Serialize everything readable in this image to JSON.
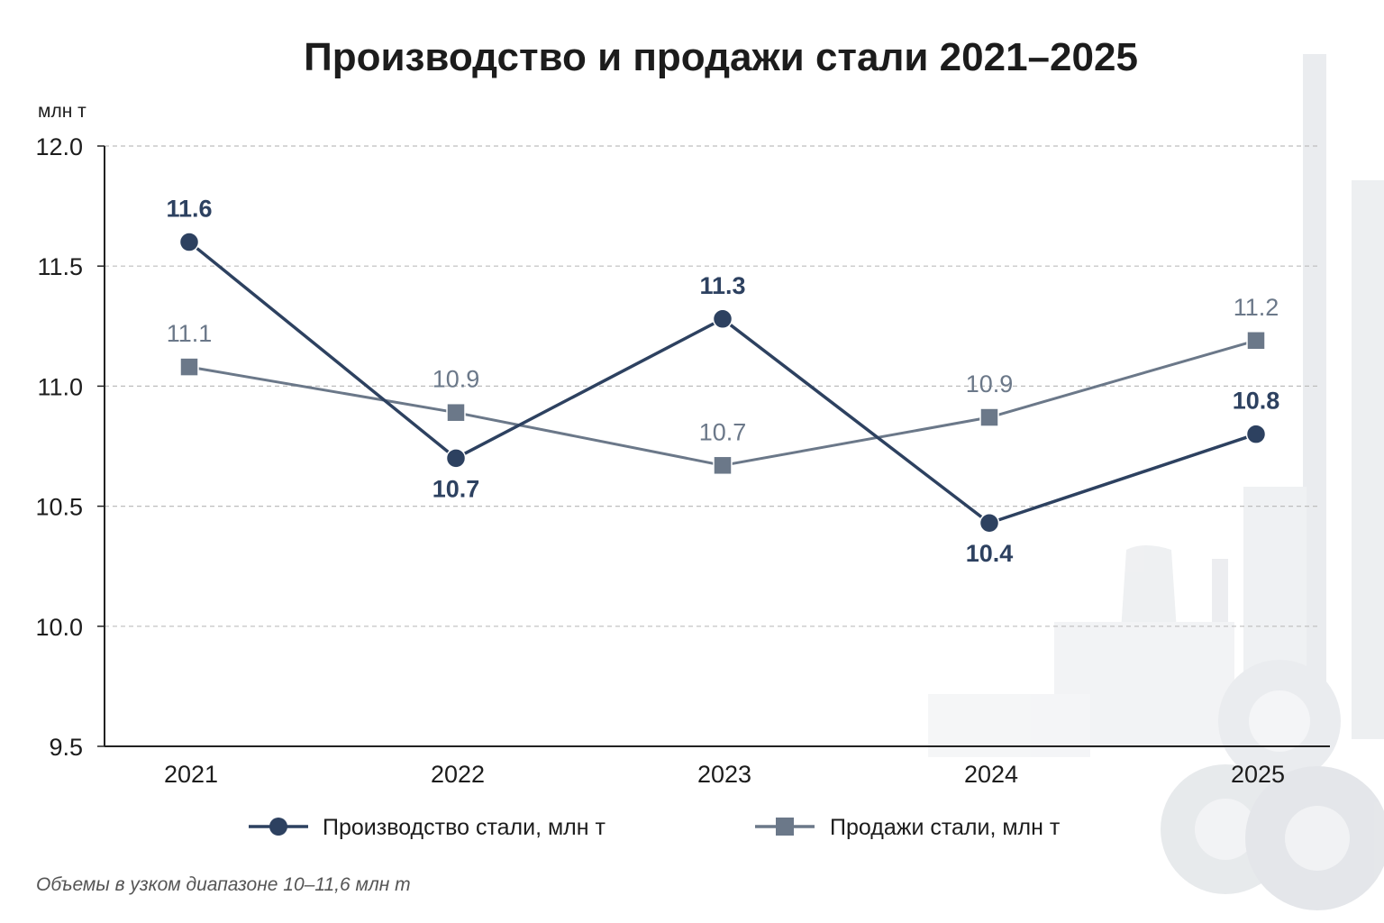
{
  "colors": {
    "production": "#2d4160",
    "sales": "#6b7889",
    "grid": "#bdbdbd",
    "axis": "#222222"
  },
  "chart_data": {
    "type": "line",
    "title": "Производство и продажи стали 2021–2025",
    "ylabel": "млн т",
    "xlabel": "",
    "categories": [
      "2021",
      "2022",
      "2023",
      "2024",
      "2025"
    ],
    "ylim": [
      9.5,
      12.0
    ],
    "yticks": [
      "9.5",
      "10.0",
      "10.5",
      "11.0",
      "11.5",
      "12.0"
    ],
    "grid": true,
    "legend_position": "bottom",
    "series": [
      {
        "name": "Производство стали, млн т",
        "marker": "circle",
        "values": [
          11.6,
          10.7,
          11.28,
          10.43,
          10.8
        ],
        "labels": [
          "11.6",
          "10.7",
          "11.3",
          "10.4",
          "10.8"
        ],
        "label_pos": [
          "above",
          "below",
          "above",
          "below",
          "above"
        ]
      },
      {
        "name": "Продажи стали, млн т",
        "marker": "square",
        "values": [
          11.08,
          10.89,
          10.67,
          10.87,
          11.19
        ],
        "labels": [
          "11.1",
          "10.9",
          "10.7",
          "10.9",
          "11.2"
        ],
        "label_pos": [
          "above",
          "above",
          "above",
          "above",
          "above"
        ]
      }
    ],
    "note": "Объемы в узком диапазоне 10–11,6 млн т"
  }
}
